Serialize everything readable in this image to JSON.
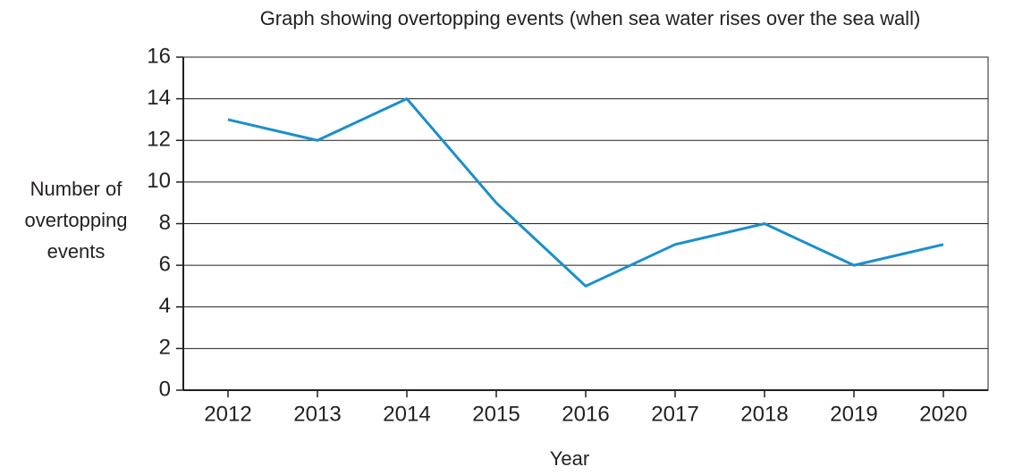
{
  "chart_data": {
    "type": "line",
    "title": "Graph showing overtopping events (when sea water rises over the sea wall)",
    "xlabel": "Year",
    "ylabel": [
      "Number of",
      "overtopping",
      "events"
    ],
    "categories": [
      "2012",
      "2013",
      "2014",
      "2015",
      "2016",
      "2017",
      "2018",
      "2019",
      "2020"
    ],
    "series": [
      {
        "name": "Overtopping events",
        "color": "#1a8fcb",
        "values": [
          13,
          12,
          14,
          9,
          5,
          7,
          8,
          6,
          7
        ]
      }
    ],
    "ylim": [
      0,
      16
    ],
    "yticks": [
      0,
      2,
      4,
      6,
      8,
      10,
      12,
      14,
      16
    ],
    "grid": true
  }
}
